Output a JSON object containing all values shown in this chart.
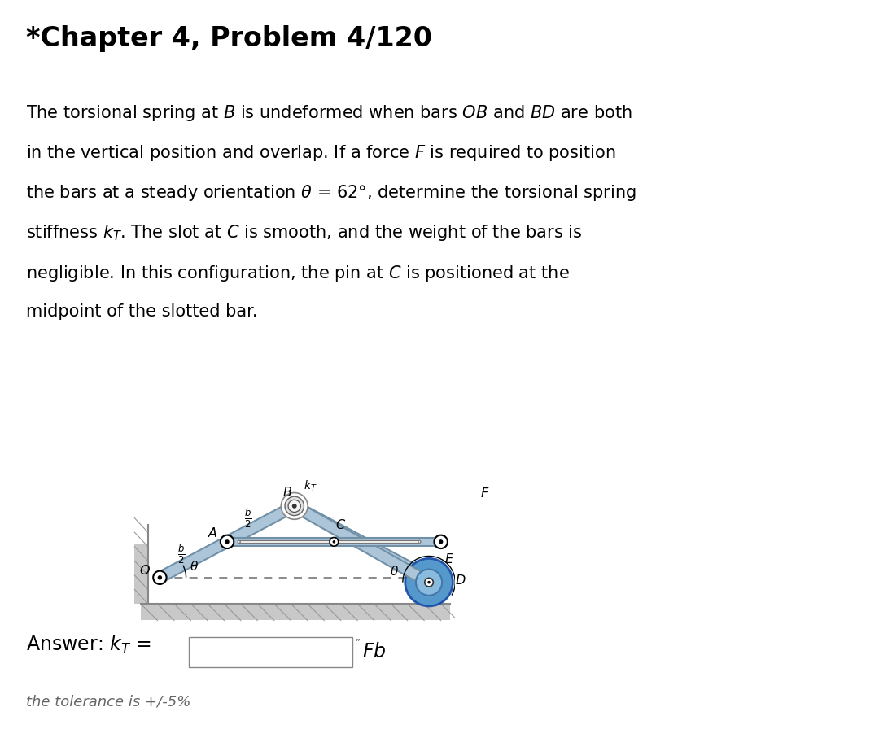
{
  "title": "*Chapter 4, Problem 4/120",
  "bg_color": "#ffffff",
  "bar_color": "#adc5d8",
  "bar_edge_color": "#7090a8",
  "theta_deg": 62,
  "fig_width": 10.8,
  "fig_height": 9.07,
  "body_lines": [
    "The torsional spring at $\\it{B}$ is undeformed when bars $\\it{OB}$ and $\\it{BD}$ are both",
    "in the vertical position and overlap. If a force $\\it{F}$ is required to position",
    "the bars at a steady orientation $\\theta$ = 62°, determine the torsional spring",
    "stiffness $k_T$. The slot at $\\it{C}$ is smooth, and the weight of the bars is",
    "negligible. In this configuration, the pin at $\\it{C}$ is positioned at the",
    "midpoint of the slotted bar."
  ]
}
